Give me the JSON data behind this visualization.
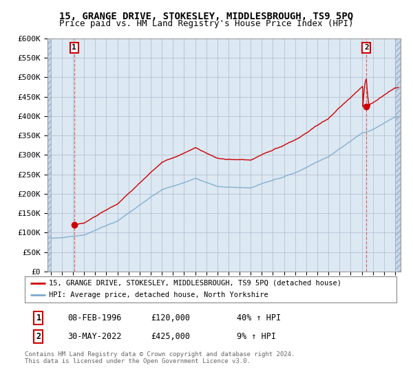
{
  "title": "15, GRANGE DRIVE, STOKESLEY, MIDDLESBROUGH, TS9 5PQ",
  "subtitle": "Price paid vs. HM Land Registry's House Price Index (HPI)",
  "ylabel_ticks": [
    "£0",
    "£50K",
    "£100K",
    "£150K",
    "£200K",
    "£250K",
    "£300K",
    "£350K",
    "£400K",
    "£450K",
    "£500K",
    "£550K",
    "£600K"
  ],
  "ytick_values": [
    0,
    50000,
    100000,
    150000,
    200000,
    250000,
    300000,
    350000,
    400000,
    450000,
    500000,
    550000,
    600000
  ],
  "xlim_min": 1993.7,
  "xlim_max": 2025.5,
  "ylim": [
    0,
    600000
  ],
  "line_color_red": "#cc0000",
  "line_color_blue": "#7aaacc",
  "grid_color": "#b0b8cc",
  "bg_color": "#dce8f2",
  "hatch_bg": "#c8d8e8",
  "legend_label_red": "15, GRANGE DRIVE, STOKESLEY, MIDDLESBROUGH, TS9 5PQ (detached house)",
  "legend_label_blue": "HPI: Average price, detached house, North Yorkshire",
  "point1_x": 1996.1,
  "point1_y": 120000,
  "point2_x": 2022.42,
  "point2_y": 425000,
  "footer": "Contains HM Land Registry data © Crown copyright and database right 2024.\nThis data is licensed under the Open Government Licence v3.0.",
  "table_rows": [
    [
      "1",
      "08-FEB-1996",
      "£120,000",
      "40% ↑ HPI"
    ],
    [
      "2",
      "30-MAY-2022",
      "£425,000",
      "9% ↑ HPI"
    ]
  ]
}
